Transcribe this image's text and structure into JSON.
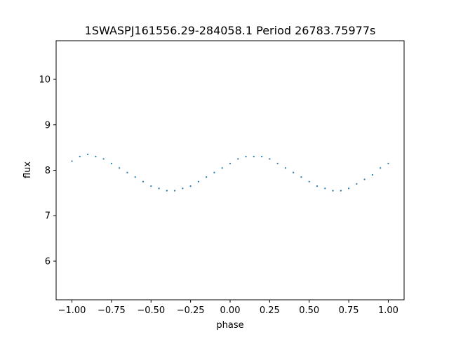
{
  "chart_data": {
    "type": "scatter",
    "title": "1SWASPJ161556.29-284058.1 Period 26783.75977s",
    "xlabel": "phase",
    "ylabel": "flux",
    "xlim": [
      -1.1,
      1.1
    ],
    "ylim": [
      5.15,
      10.85
    ],
    "xticks": [
      -1.0,
      -0.75,
      -0.5,
      -0.25,
      0.0,
      0.25,
      0.5,
      0.75,
      1.0
    ],
    "xtick_labels": [
      "−1.00",
      "−0.75",
      "−0.50",
      "−0.25",
      "0.00",
      "0.25",
      "0.50",
      "0.75",
      "1.00"
    ],
    "yticks": [
      6,
      7,
      8,
      9,
      10
    ],
    "ytick_labels": [
      "6",
      "7",
      "8",
      "9",
      "10"
    ],
    "grid": false,
    "marker_color": "#1f77b4",
    "series": [
      {
        "x": [
          -1.0,
          -0.95,
          -0.9,
          -0.85,
          -0.8,
          -0.75,
          -0.7,
          -0.65,
          -0.6,
          -0.55,
          -0.5,
          -0.45,
          -0.4,
          -0.35,
          -0.3,
          -0.25,
          -0.2,
          -0.15,
          -0.1,
          -0.05,
          0.0,
          0.05,
          0.1,
          0.15,
          0.2,
          0.25,
          0.3,
          0.35,
          0.4,
          0.45,
          0.5,
          0.55,
          0.6,
          0.65,
          0.7,
          0.75,
          0.8,
          0.85,
          0.9,
          0.95,
          1.0
        ],
        "y": [
          8.2,
          8.3,
          8.35,
          8.3,
          8.25,
          8.15,
          8.05,
          7.95,
          7.85,
          7.75,
          7.65,
          7.6,
          7.55,
          7.55,
          7.6,
          7.65,
          7.75,
          7.85,
          7.95,
          8.05,
          8.15,
          8.25,
          8.3,
          8.3,
          8.3,
          8.25,
          8.15,
          8.05,
          7.95,
          7.85,
          7.75,
          7.65,
          7.6,
          7.55,
          7.55,
          7.6,
          7.7,
          7.8,
          7.9,
          8.05,
          8.15
        ]
      }
    ]
  }
}
